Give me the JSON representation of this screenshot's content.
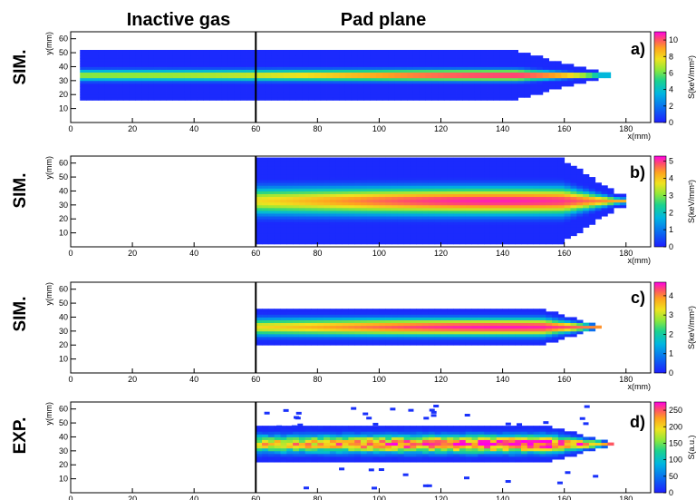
{
  "headers": {
    "left": "Inactive gas",
    "right": "Pad plane"
  },
  "chart_data": [
    {
      "type": "heatmap",
      "row_label": "SIM.",
      "panel_label": "a)",
      "xlabel": "x(mm)",
      "ylabel": "y(mm)",
      "xlim": [
        0,
        188
      ],
      "ylim": [
        0,
        65
      ],
      "xticks": [
        0,
        20,
        40,
        60,
        80,
        100,
        120,
        140,
        160,
        180
      ],
      "yticks": [
        10,
        20,
        30,
        40,
        50,
        60
      ],
      "colorbar_label": "S(keV/mm²)",
      "colorbar_range": [
        0,
        11
      ],
      "colorbar_ticks": [
        0,
        2,
        4,
        6,
        8,
        10
      ],
      "divider_x": 60,
      "track": {
        "x_start": 3,
        "x_end": 175,
        "center_y": 34,
        "peak_x": 145,
        "peak_value": 10.5,
        "core_half_width": 3,
        "halo_half_width": 17
      }
    },
    {
      "type": "heatmap",
      "row_label": "SIM.",
      "panel_label": "b)",
      "xlabel": "x(mm)",
      "ylabel": "y(mm)",
      "xlim": [
        0,
        188
      ],
      "ylim": [
        0,
        65
      ],
      "xticks": [
        0,
        20,
        40,
        60,
        80,
        100,
        120,
        140,
        160,
        180
      ],
      "yticks": [
        10,
        20,
        30,
        40,
        50,
        60
      ],
      "colorbar_label": "S(keV/mm²)",
      "colorbar_range": [
        0,
        5.3
      ],
      "colorbar_ticks": [
        0,
        1,
        2,
        3,
        4,
        5
      ],
      "divider_x": 60,
      "track": {
        "x_start": 60,
        "x_end": 180,
        "center_y": 33,
        "peak_x": 138,
        "peak_value": 5,
        "core_half_width": 8,
        "halo_half_width": 30
      }
    },
    {
      "type": "heatmap",
      "row_label": "SIM.",
      "panel_label": "c)",
      "xlabel": "x(mm)",
      "ylabel": "y(mm)",
      "xlim": [
        0,
        188
      ],
      "ylim": [
        0,
        65
      ],
      "xticks": [
        0,
        20,
        40,
        60,
        80,
        100,
        120,
        140,
        160,
        180
      ],
      "yticks": [
        10,
        20,
        30,
        40,
        50,
        60
      ],
      "colorbar_label": "S(keV/mm²)",
      "colorbar_range": [
        0,
        4.7
      ],
      "colorbar_ticks": [
        0,
        1,
        2,
        3,
        4
      ],
      "divider_x": 60,
      "track": {
        "x_start": 60,
        "x_end": 172,
        "center_y": 33,
        "peak_x": 140,
        "peak_value": 4.5,
        "core_half_width": 5,
        "halo_half_width": 13
      }
    },
    {
      "type": "heatmap",
      "row_label": "EXP.",
      "panel_label": "d)",
      "xlabel": "x(mm)",
      "ylabel": "y(mm)",
      "xlim": [
        0,
        188
      ],
      "ylim": [
        0,
        65
      ],
      "xticks": [
        0,
        20,
        40,
        60,
        80,
        100,
        120,
        140,
        160,
        180
      ],
      "yticks": [
        10,
        20,
        30,
        40,
        50,
        60
      ],
      "colorbar_label": "S(a.u.)",
      "colorbar_range": [
        0,
        275
      ],
      "colorbar_ticks": [
        0,
        50,
        100,
        150,
        200,
        250
      ],
      "divider_x": 60,
      "track": {
        "x_start": 60,
        "x_end": 176,
        "center_y": 35,
        "peak_x": 140,
        "peak_value": 260,
        "core_half_width": 5,
        "halo_half_width": 12
      }
    }
  ]
}
